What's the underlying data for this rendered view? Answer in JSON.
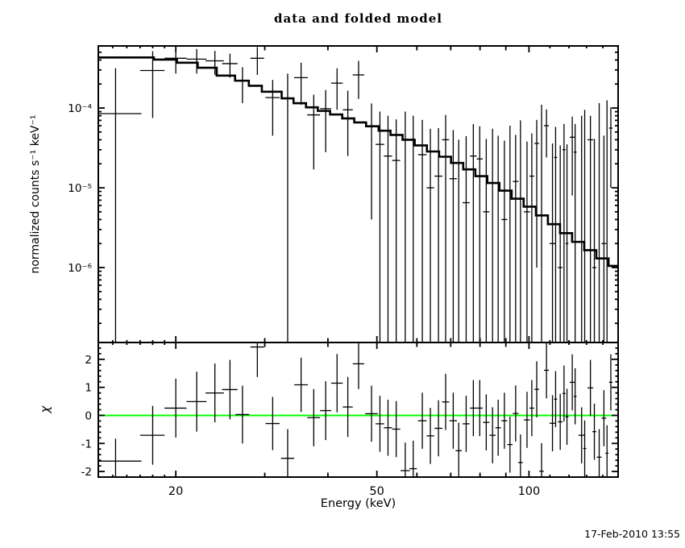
{
  "title": "data and folded model",
  "timestamp": "17-Feb-2010 13:55",
  "labels": {
    "x_axis": "Energy (keV)",
    "y_axis_top": "normalized counts s⁻¹ keV⁻¹",
    "y_axis_bottom": "χ"
  },
  "colors": {
    "background": "#ffffff",
    "ink": "#000000",
    "model_line": "#000000",
    "zero_line": "#00ff00"
  },
  "chart_data": {
    "type": "line",
    "title": "data and folded model",
    "xlabel": "Energy (keV)",
    "x_axis": {
      "scale": "log",
      "lim": [
        14.05,
        150.1
      ],
      "major_ticks": [
        20,
        50,
        100
      ],
      "tick_labels": [
        "20",
        "50",
        "100"
      ],
      "medium_ticks": [
        30,
        40,
        60,
        70,
        80,
        90
      ],
      "minor_ticks": [
        15,
        16,
        17,
        18,
        19,
        110,
        120,
        130,
        140,
        150
      ]
    },
    "panels": [
      {
        "name": "spectrum",
        "ylabel": "normalized counts s⁻¹ keV⁻¹",
        "yscale": "log",
        "ylim": [
          1.15e-07,
          0.0006
        ],
        "ytick_values": [
          0.0001,
          1e-05,
          1e-06
        ],
        "ytick_labels": [
          "10⁻⁴",
          "10⁻⁵",
          "10⁻⁶"
        ],
        "legend": [
          "data (crosses)",
          "folded model (histogram)"
        ],
        "model_histogram": {
          "edges": [
            14.05,
            18.1,
            20.1,
            22.1,
            24.1,
            26.2,
            27.9,
            29.6,
            32.4,
            34.2,
            36.2,
            38.2,
            40.4,
            42.7,
            45.1,
            47.6,
            50.4,
            53.2,
            56.2,
            59.4,
            62.8,
            66.4,
            70.1,
            74.1,
            78.3,
            82.7,
            87.4,
            92.4,
            97.6,
            103.2,
            109.0,
            115.2,
            121.7,
            128.6,
            135.9,
            143.7,
            150.1
          ],
          "values": [
            0.00043,
            0.000405,
            0.00037,
            0.00032,
            0.000255,
            0.00022,
            0.00019,
            0.00016,
            0.000132,
            0.000115,
            0.000102,
            9.2e-05,
            8.3e-05,
            7.4e-05,
            6.6e-05,
            5.9e-05,
            5.2e-05,
            4.6e-05,
            4e-05,
            3.4e-05,
            2.85e-05,
            2.45e-05,
            2.05e-05,
            1.7e-05,
            1.4e-05,
            1.15e-05,
            9.2e-06,
            7.3e-06,
            5.8e-06,
            4.5e-06,
            3.5e-06,
            2.7e-06,
            2.1e-06,
            1.65e-06,
            1.3e-06,
            1.05e-06
          ]
        },
        "points_format": [
          "energy_keV",
          "energy_halfwidth_keV",
          "value_or_null",
          "sigma"
        ],
        "points": [
          [
            15.2,
            1.9,
            8.5e-05,
            0.00023
          ],
          [
            18.0,
            1.0,
            0.000295,
            0.00022
          ],
          [
            20.0,
            1.0,
            0.00042,
            0.00015
          ],
          [
            22.0,
            1.0,
            0.00041,
            0.00014
          ],
          [
            23.9,
            1.0,
            0.00039,
            0.00013
          ],
          [
            25.6,
            0.9,
            0.00036,
            0.00012
          ],
          [
            27.1,
            0.85,
            0.00022,
            0.000105
          ],
          [
            29.0,
            0.9,
            0.00042,
            0.00016
          ],
          [
            31.1,
            1.0,
            0.000135,
            9e-05
          ],
          [
            33.3,
            1.0,
            null,
            0.00027
          ],
          [
            35.4,
            1.1,
            0.00024,
            0.00013
          ],
          [
            37.5,
            1.1,
            8.2e-05,
            6.5e-05
          ],
          [
            39.6,
            1.0,
            9.8e-05,
            7e-05
          ],
          [
            41.7,
            1.1,
            0.000205,
            0.00011
          ],
          [
            43.8,
            1.0,
            9.5e-05,
            7e-05
          ],
          [
            46.0,
            1.2,
            0.00026,
            0.00013
          ],
          [
            48.8,
            1.4,
            5.9e-05,
            5.5e-05
          ],
          [
            50.7,
            1.0,
            3.5e-05,
            5.5e-05
          ],
          [
            52.6,
            1.0,
            2.5e-05,
            5.5e-05
          ],
          [
            54.6,
            1.0,
            2.2e-05,
            5e-05
          ],
          [
            56.9,
            1.2,
            null,
            9e-05
          ],
          [
            59.0,
            1.0,
            null,
            8e-05
          ],
          [
            61.5,
            1.2,
            2.6e-05,
            4.5e-05
          ],
          [
            63.8,
            1.1,
            1e-05,
            4.5e-05
          ],
          [
            66.2,
            1.2,
            1.4e-05,
            4.2e-05
          ],
          [
            68.4,
            1.1,
            4e-05,
            4.2e-05
          ],
          [
            70.8,
            1.2,
            1.3e-05,
            4e-05
          ],
          [
            72.6,
            1.0,
            null,
            4e-05
          ],
          [
            75.1,
            1.2,
            6.5e-06,
            3.8e-05
          ],
          [
            77.6,
            1.2,
            2.5e-05,
            3.8e-05
          ],
          [
            79.9,
            1.1,
            2.3e-05,
            3.6e-05
          ],
          [
            82.3,
            1.2,
            5e-06,
            3.6e-05
          ],
          [
            84.7,
            1.2,
            null,
            5.5e-05
          ],
          [
            86.9,
            1.1,
            null,
            4.5e-05
          ],
          [
            89.4,
            1.2,
            4e-06,
            3.5e-05
          ],
          [
            91.7,
            1.1,
            null,
            6e-05
          ],
          [
            94.1,
            1.2,
            1.2e-05,
            3.4e-05
          ],
          [
            96.2,
            1.0,
            null,
            7e-05
          ],
          [
            99.1,
            1.4,
            5e-06,
            3.3e-05
          ],
          [
            101.3,
            1.1,
            1.4e-05,
            3.4e-05
          ],
          [
            103.6,
            1.1,
            3.6e-05,
            3.5e-05
          ],
          [
            105.9,
            1.1,
            null,
            0.00011
          ],
          [
            108.3,
            1.2,
            6e-05,
            3.6e-05
          ],
          [
            111.3,
            1.5,
            2e-06,
            3.4e-05
          ],
          [
            112.9,
            0.8,
            2.4e-05,
            3.4e-05
          ],
          [
            115.3,
            1.2,
            1e-06,
            3.3e-05
          ],
          [
            117.3,
            0.8,
            3e-05,
            3.3e-05
          ],
          [
            118.9,
            0.8,
            2e-06,
            3.3e-05
          ],
          [
            121.8,
            1.4,
            4.3e-05,
            3.5e-05
          ],
          [
            123.4,
            0.8,
            2.8e-05,
            3.5e-05
          ],
          [
            127.1,
            1.8,
            null,
            8e-05
          ],
          [
            128.9,
            0.9,
            null,
            9.5e-05
          ],
          [
            132.3,
            1.7,
            4e-05,
            4e-05
          ],
          [
            134.7,
            1.2,
            1e-06,
            4e-05
          ],
          [
            137.7,
            1.5,
            null,
            0.000115
          ],
          [
            140.7,
            1.5,
            2e-06,
            4.3e-05
          ],
          [
            142.7,
            1.0,
            null,
            0.000125
          ],
          [
            145.2,
            1.2,
            5.6e-05,
            4.6e-05
          ]
        ]
      },
      {
        "name": "residuals",
        "ylabel": "χ",
        "yscale": "linear",
        "ylim": [
          -2.2,
          2.6
        ],
        "ytick_values": [
          -2,
          -1,
          0,
          1,
          2
        ],
        "ytick_labels": [
          "-2",
          "-1",
          "0",
          "1",
          "2"
        ],
        "zero_line": 0,
        "points_format": [
          "energy_keV",
          "energy_halfwidth_keV",
          "chi",
          "chi_error"
        ],
        "points": [
          [
            15.2,
            1.9,
            -1.63,
            0.8
          ],
          [
            18.0,
            1.0,
            -0.71,
            1.05
          ],
          [
            20.0,
            1.0,
            0.26,
            1.05
          ],
          [
            22.0,
            1.0,
            0.49,
            1.07
          ],
          [
            23.9,
            1.0,
            0.8,
            1.05
          ],
          [
            25.6,
            0.9,
            0.92,
            1.06
          ],
          [
            27.1,
            0.85,
            0.03,
            1.03
          ],
          [
            29.0,
            0.9,
            2.44,
            1.07
          ],
          [
            31.1,
            1.0,
            -0.29,
            0.95
          ],
          [
            33.3,
            1.0,
            -1.53,
            1.04
          ],
          [
            35.4,
            1.1,
            1.09,
            0.97
          ],
          [
            37.5,
            1.1,
            -0.08,
            1.02
          ],
          [
            39.6,
            1.0,
            0.17,
            1.05
          ],
          [
            41.7,
            1.1,
            1.15,
            1.04
          ],
          [
            43.8,
            1.0,
            0.3,
            1.07
          ],
          [
            46.0,
            1.2,
            1.84,
            0.9
          ],
          [
            48.8,
            1.4,
            0.06,
            1.0
          ],
          [
            50.7,
            1.0,
            -0.3,
            1.0
          ],
          [
            52.6,
            1.0,
            -0.44,
            1.0
          ],
          [
            54.6,
            1.0,
            -0.49,
            1.0
          ],
          [
            56.9,
            1.2,
            -1.97,
            1.0
          ],
          [
            59.0,
            1.0,
            -1.9,
            1.0
          ],
          [
            61.5,
            1.2,
            -0.19,
            1.0
          ],
          [
            63.8,
            1.1,
            -0.73,
            1.0
          ],
          [
            66.2,
            1.2,
            -0.46,
            1.0
          ],
          [
            68.4,
            1.1,
            0.48,
            1.0
          ],
          [
            70.8,
            1.2,
            -0.19,
            1.0
          ],
          [
            72.6,
            1.0,
            -1.26,
            1.0
          ],
          [
            75.1,
            1.2,
            -0.3,
            1.0
          ],
          [
            77.6,
            1.2,
            0.26,
            1.0
          ],
          [
            79.9,
            1.1,
            0.26,
            1.0
          ],
          [
            82.3,
            1.2,
            -0.25,
            1.0
          ],
          [
            84.7,
            1.2,
            -0.71,
            1.0
          ],
          [
            86.9,
            1.1,
            -0.44,
            1.0
          ],
          [
            89.4,
            1.2,
            -0.19,
            1.0
          ],
          [
            91.7,
            1.1,
            -1.04,
            1.0
          ],
          [
            94.1,
            1.2,
            0.07,
            1.0
          ],
          [
            96.2,
            1.0,
            -1.68,
            1.0
          ],
          [
            99.1,
            1.4,
            -0.16,
            1.0
          ],
          [
            101.3,
            1.1,
            0.26,
            1.0
          ],
          [
            103.6,
            1.1,
            0.93,
            1.0
          ],
          [
            105.9,
            1.1,
            -1.99,
            1.0
          ],
          [
            108.3,
            1.2,
            1.61,
            1.0
          ],
          [
            111.3,
            1.5,
            -0.28,
            1.0
          ],
          [
            112.9,
            0.8,
            0.58,
            1.0
          ],
          [
            115.3,
            1.2,
            -0.23,
            1.0
          ],
          [
            117.3,
            0.8,
            0.78,
            1.0
          ],
          [
            118.9,
            0.8,
            -0.05,
            1.0
          ],
          [
            121.8,
            1.4,
            1.18,
            1.0
          ],
          [
            123.4,
            0.8,
            0.68,
            1.0
          ],
          [
            127.1,
            1.8,
            -0.71,
            1.0
          ],
          [
            128.9,
            0.9,
            -1.18,
            1.0
          ],
          [
            132.3,
            1.7,
            0.98,
            1.0
          ],
          [
            134.7,
            1.2,
            -0.58,
            1.0
          ],
          [
            137.7,
            1.5,
            -1.49,
            1.0
          ],
          [
            140.7,
            1.5,
            -0.1,
            1.0
          ],
          [
            142.7,
            1.0,
            -1.35,
            1.0
          ],
          [
            145.2,
            1.2,
            1.18,
            1.0
          ]
        ]
      }
    ]
  }
}
